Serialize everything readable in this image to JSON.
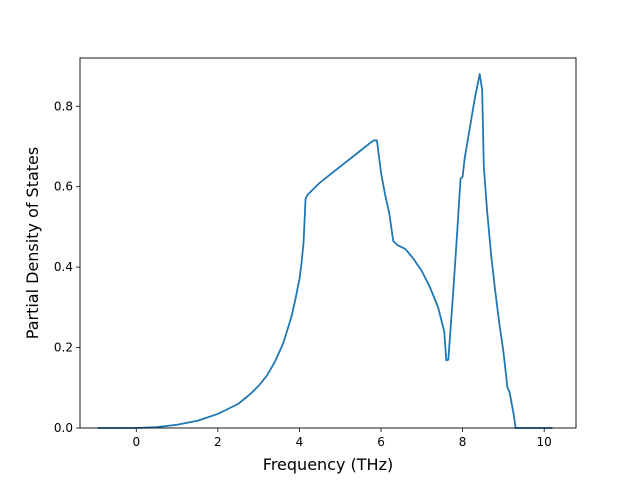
{
  "chart_data": {
    "type": "line",
    "title": "",
    "xlabel": "Frequency (THz)",
    "ylabel": "Partial Density of States",
    "xlim": [
      -1.38,
      10.78
    ],
    "ylim": [
      0.0,
      0.92
    ],
    "xticks": [
      0,
      2,
      4,
      6,
      8,
      10
    ],
    "yticks": [
      0.0,
      0.2,
      0.4,
      0.6,
      0.8
    ],
    "xtick_labels": [
      "0",
      "2",
      "4",
      "6",
      "8",
      "10"
    ],
    "ytick_labels": [
      "0.0",
      "0.2",
      "0.4",
      "0.6",
      "0.8"
    ],
    "grid": false,
    "legend": "none",
    "series": [
      {
        "color": "#1f77b4",
        "x": [
          -0.95,
          0.0,
          0.5,
          1.0,
          1.5,
          2.0,
          2.5,
          2.8,
          3.0,
          3.2,
          3.4,
          3.6,
          3.8,
          3.9,
          4.0,
          4.05,
          4.1,
          4.15,
          4.2,
          4.5,
          5.0,
          5.5,
          5.75,
          5.82,
          5.9,
          6.0,
          6.1,
          6.2,
          6.3,
          6.4,
          6.6,
          6.8,
          7.0,
          7.2,
          7.4,
          7.55,
          7.6,
          7.65,
          7.75,
          7.85,
          7.95,
          8.0,
          8.05,
          8.1,
          8.2,
          8.3,
          8.42,
          8.48,
          8.52,
          8.6,
          8.7,
          8.8,
          8.9,
          9.0,
          9.1,
          9.15,
          9.25,
          9.3,
          10.2
        ],
        "y": [
          0.0,
          0.0,
          0.002,
          0.008,
          0.018,
          0.035,
          0.06,
          0.085,
          0.105,
          0.13,
          0.165,
          0.21,
          0.275,
          0.32,
          0.37,
          0.41,
          0.46,
          0.57,
          0.58,
          0.61,
          0.65,
          0.69,
          0.71,
          0.715,
          0.715,
          0.635,
          0.58,
          0.535,
          0.465,
          0.455,
          0.445,
          0.42,
          0.39,
          0.35,
          0.3,
          0.24,
          0.168,
          0.17,
          0.31,
          0.46,
          0.62,
          0.625,
          0.67,
          0.7,
          0.76,
          0.82,
          0.88,
          0.84,
          0.65,
          0.54,
          0.43,
          0.34,
          0.26,
          0.19,
          0.1,
          0.09,
          0.035,
          0.0,
          0.0
        ]
      }
    ]
  }
}
